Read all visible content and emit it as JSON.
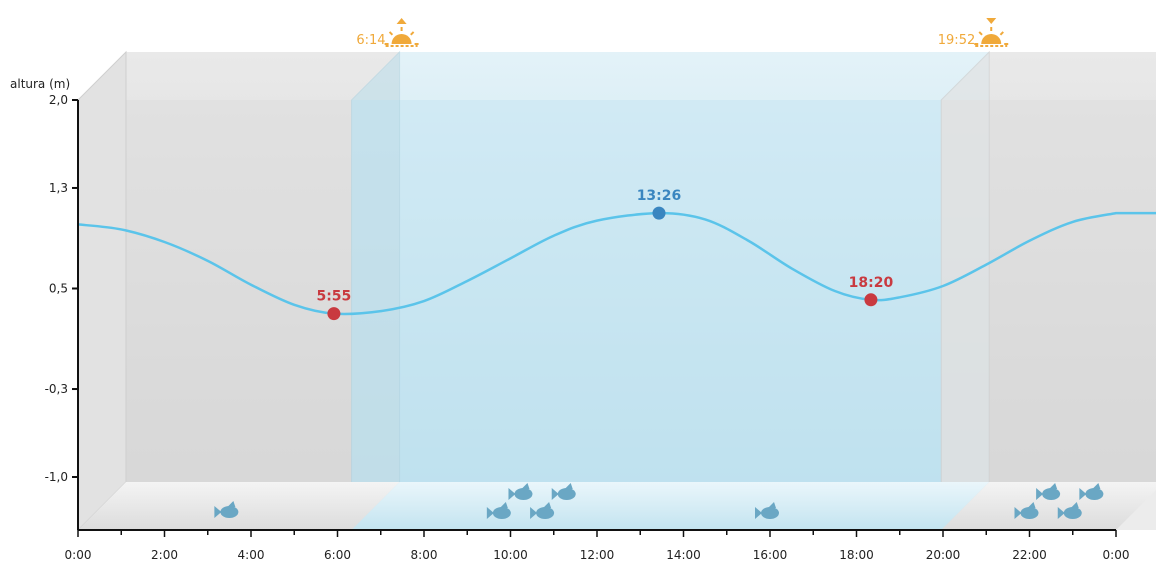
{
  "chart_data": {
    "type": "line",
    "ylabel": "altura (m)",
    "ylim": [
      -1.5,
      2.0
    ],
    "y_ticks": [
      "2,0",
      "1,3",
      "0,5",
      "-0,3",
      "-1,0"
    ],
    "y_tick_values": [
      2.0,
      1.3,
      0.5,
      -0.3,
      -1.0
    ],
    "x_ticks": [
      "0:00",
      "2:00",
      "4:00",
      "6:00",
      "8:00",
      "10:00",
      "12:00",
      "14:00",
      "16:00",
      "18:00",
      "20:00",
      "22:00",
      "0:00"
    ],
    "x_tick_hours": [
      0,
      2,
      4,
      6,
      8,
      10,
      12,
      14,
      16,
      18,
      20,
      22,
      24
    ],
    "sunrise": {
      "label": "6:14",
      "hour": 6.2333
    },
    "sunset": {
      "label": "19:52",
      "hour": 19.8667
    },
    "tides": [
      {
        "label": "5:55",
        "hour": 5.9167,
        "height": 0.3,
        "kind": "low"
      },
      {
        "label": "13:26",
        "hour": 13.4333,
        "height": 1.1,
        "kind": "high"
      },
      {
        "label": "18:20",
        "hour": 18.3333,
        "height": 0.41,
        "kind": "low"
      }
    ],
    "curve": {
      "x": [
        0,
        1,
        2,
        3,
        4,
        5,
        5.92,
        7,
        8,
        9,
        10,
        11,
        12,
        13.43,
        14.5,
        15.5,
        16.5,
        17.5,
        18.33,
        19,
        20,
        21,
        22,
        23,
        24
      ],
      "y": [
        1.01,
        0.97,
        0.87,
        0.72,
        0.53,
        0.37,
        0.3,
        0.32,
        0.4,
        0.56,
        0.74,
        0.92,
        1.04,
        1.1,
        1.05,
        0.88,
        0.66,
        0.48,
        0.41,
        0.43,
        0.52,
        0.69,
        0.88,
        1.03,
        1.1
      ]
    },
    "fish_icons_count": 10,
    "colors": {
      "line": "#5bc4ea",
      "low_tide": "#c93a40",
      "high_tide": "#3a86c0",
      "sun": "#f0a93a",
      "night": "#d9d9d9",
      "day": "#bfe2ef",
      "fish": "#6aa7c4"
    },
    "grid": false
  }
}
